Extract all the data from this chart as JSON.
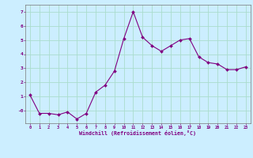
{
  "x": [
    0,
    1,
    2,
    3,
    4,
    5,
    6,
    7,
    8,
    9,
    10,
    11,
    12,
    13,
    14,
    15,
    16,
    17,
    18,
    19,
    20,
    21,
    22,
    23
  ],
  "y": [
    1.1,
    -0.2,
    -0.2,
    -0.3,
    -0.1,
    -0.6,
    -0.2,
    1.3,
    1.8,
    2.8,
    5.1,
    7.0,
    5.2,
    4.6,
    4.2,
    4.6,
    5.0,
    5.1,
    3.8,
    3.4,
    3.3,
    2.9,
    2.9,
    3.1
  ],
  "line_color": "#800080",
  "marker": "D",
  "marker_size": 2.0,
  "bg_color": "#cceeff",
  "grid_color": "#aaddcc",
  "xlabel": "Windchill (Refroidissement éolien,°C)",
  "xlabel_color": "#800080",
  "tick_color": "#800080",
  "ylim": [
    -0.9,
    7.5
  ],
  "xlim": [
    -0.5,
    23.5
  ],
  "yticks": [
    0,
    1,
    2,
    3,
    4,
    5,
    6,
    7
  ],
  "ytick_labels": [
    "-0",
    "1",
    "2",
    "3",
    "4",
    "5",
    "6",
    "7"
  ],
  "xticks": [
    0,
    1,
    2,
    3,
    4,
    5,
    6,
    7,
    8,
    9,
    10,
    11,
    12,
    13,
    14,
    15,
    16,
    17,
    18,
    19,
    20,
    21,
    22,
    23
  ]
}
